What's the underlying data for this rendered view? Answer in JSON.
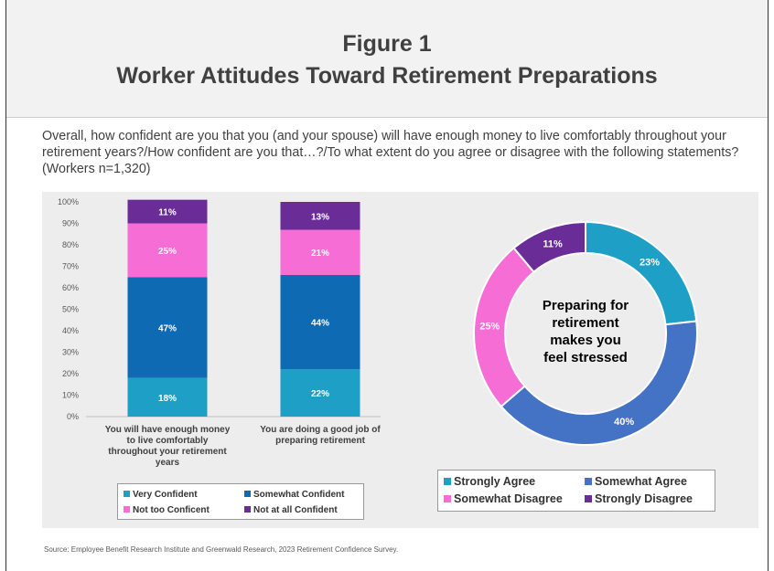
{
  "header": {
    "figure_label": "Figure 1",
    "title": "Worker Attitudes Toward Retirement Preparations"
  },
  "question": "Overall, how confident are you that you (and your spouse) will have enough money to live comfortably throughout your retirement years?/How confident are you that…?/To what extent do you agree or disagree with the following statements? (Workers n=1,320)",
  "source": "Source: Employee Benefit Research Institute and Greenwald Research, 2023 Retirement Confidence Survey.",
  "colors": {
    "very_confident": "#1ea0c6",
    "somewhat_confident": "#0f6ab4",
    "not_too_confident": "#f56dd5",
    "not_at_all_confident": "#6a2d98",
    "strongly_agree": "#1ea0c6",
    "somewhat_agree": "#4472c4",
    "somewhat_disagree": "#f56dd5",
    "strongly_disagree": "#6a2d98"
  },
  "chart_data": [
    {
      "type": "bar",
      "stacked": true,
      "categories": [
        "You will have enough money to live comfortably throughout your retirement years",
        "You are doing a good job of preparing retirement"
      ],
      "category_lines": [
        [
          "You will have enough money",
          "to live comfortably",
          "throughout your retirement",
          "years"
        ],
        [
          "You are doing a good job of",
          "preparing retirement"
        ]
      ],
      "series": [
        {
          "name": "Very Confident",
          "values": [
            18,
            22
          ]
        },
        {
          "name": "Somewhat Confident",
          "values": [
            47,
            44
          ]
        },
        {
          "name": "Not too Conficent",
          "values": [
            25,
            21
          ]
        },
        {
          "name": "Not at all Confident",
          "values": [
            11,
            13
          ]
        }
      ],
      "ylim": [
        0,
        100
      ],
      "yticks": [
        "0%",
        "10%",
        "20%",
        "30%",
        "40%",
        "50%",
        "60%",
        "70%",
        "80%",
        "90%",
        "100%"
      ],
      "legend_position": "bottom"
    },
    {
      "type": "pie",
      "donut": true,
      "center_label": "Preparing for retirement makes you feel stressed",
      "center_lines": [
        "Preparing for",
        "retirement",
        "makes you",
        "feel stressed"
      ],
      "labels": [
        "Strongly Agree",
        "Somewhat Agree",
        "Somewhat Disagree",
        "Strongly Disagree"
      ],
      "values": [
        23,
        40,
        25,
        11
      ],
      "value_labels": [
        "23%",
        "40%",
        "25%",
        "11%"
      ],
      "legend_position": "bottom"
    }
  ]
}
